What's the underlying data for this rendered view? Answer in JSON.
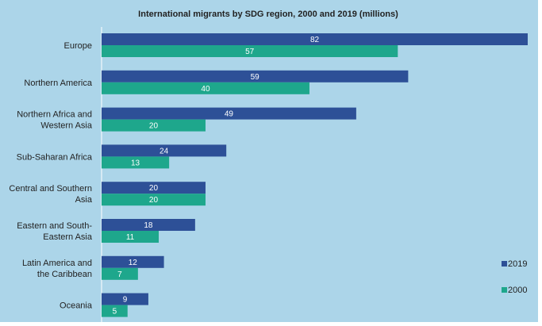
{
  "chart_data": {
    "type": "bar",
    "orientation": "horizontal",
    "title": "International migrants by SDG region, 2000 and 2019 (millions)",
    "xlabel": "",
    "ylabel": "",
    "xlim": [
      0,
      82
    ],
    "grid": false,
    "legend_position": "bottom-right",
    "categories": [
      [
        "Europe"
      ],
      [
        "Northern America"
      ],
      [
        "Northern Africa and",
        "Western Asia"
      ],
      [
        "Sub-Saharan Africa"
      ],
      [
        "Central and Southern",
        "Asia"
      ],
      [
        "Eastern and South-",
        "Eastern Asia"
      ],
      [
        "Latin America and",
        "the Caribbean"
      ],
      [
        "Oceania"
      ]
    ],
    "series": [
      {
        "name": "2019",
        "color": "#2d5097",
        "values": [
          82,
          59,
          49,
          24,
          20,
          18,
          12,
          9
        ]
      },
      {
        "name": "2000",
        "color": "#1ea78c",
        "values": [
          57,
          40,
          20,
          13,
          20,
          11,
          7,
          5
        ]
      }
    ]
  },
  "colors": {
    "background": "#acd5e9",
    "axis": "#ffffff"
  }
}
